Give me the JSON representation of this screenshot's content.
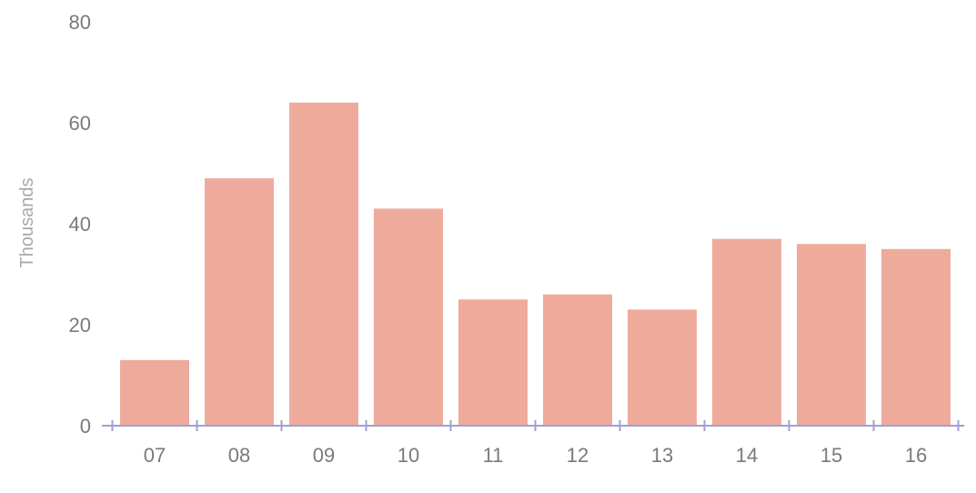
{
  "chart_data": {
    "type": "bar",
    "categories": [
      "07",
      "08",
      "09",
      "10",
      "11",
      "12",
      "13",
      "14",
      "15",
      "16"
    ],
    "values": [
      13,
      49,
      64,
      43,
      25,
      26,
      23,
      37,
      36,
      35
    ],
    "title": "",
    "xlabel": "",
    "ylabel": "Thousands",
    "ylim": [
      0,
      80
    ],
    "yticks": [
      "0",
      "20",
      "40",
      "60",
      "80"
    ],
    "grid": false,
    "legend": "none"
  },
  "colors": {
    "bar": "#eeab9b",
    "axis": "#9fa0d0",
    "text": "#7a7a7a"
  }
}
